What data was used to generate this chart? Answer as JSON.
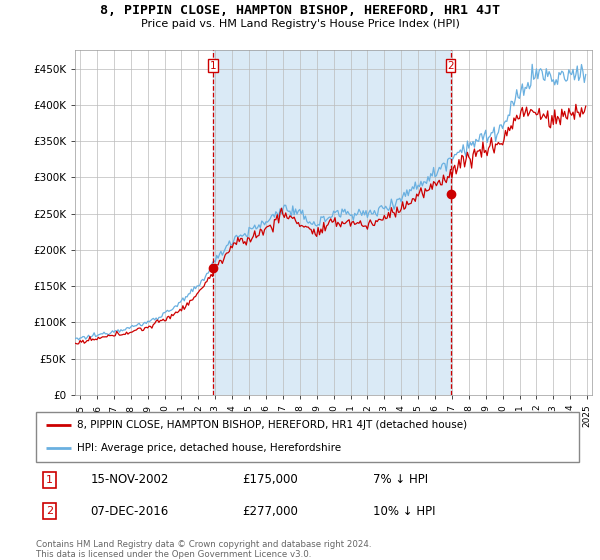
{
  "title": "8, PIPPIN CLOSE, HAMPTON BISHOP, HEREFORD, HR1 4JT",
  "subtitle": "Price paid vs. HM Land Registry's House Price Index (HPI)",
  "ytick_values": [
    0,
    50000,
    100000,
    150000,
    200000,
    250000,
    300000,
    350000,
    400000,
    450000
  ],
  "ylim": [
    0,
    475000
  ],
  "xlim_start": 1994.7,
  "xlim_end": 2025.3,
  "hpi_color": "#6ab0e0",
  "price_color": "#cc0000",
  "shade_color": "#daeaf6",
  "marker1_x": 2002.875,
  "marker1_y": 175000,
  "marker2_x": 2016.917,
  "marker2_y": 277000,
  "marker1_label": "15-NOV-2002",
  "marker1_price": "£175,000",
  "marker1_hpi": "7% ↓ HPI",
  "marker2_label": "07-DEC-2016",
  "marker2_price": "£277,000",
  "marker2_hpi": "10% ↓ HPI",
  "legend_line1": "8, PIPPIN CLOSE, HAMPTON BISHOP, HEREFORD, HR1 4JT (detached house)",
  "legend_line2": "HPI: Average price, detached house, Herefordshire",
  "footnote": "Contains HM Land Registry data © Crown copyright and database right 2024.\nThis data is licensed under the Open Government Licence v3.0.",
  "xtick_years": [
    1995,
    1996,
    1997,
    1998,
    1999,
    2000,
    2001,
    2002,
    2003,
    2004,
    2005,
    2006,
    2007,
    2008,
    2009,
    2010,
    2011,
    2012,
    2013,
    2014,
    2015,
    2016,
    2017,
    2018,
    2019,
    2020,
    2021,
    2022,
    2023,
    2024,
    2025
  ]
}
